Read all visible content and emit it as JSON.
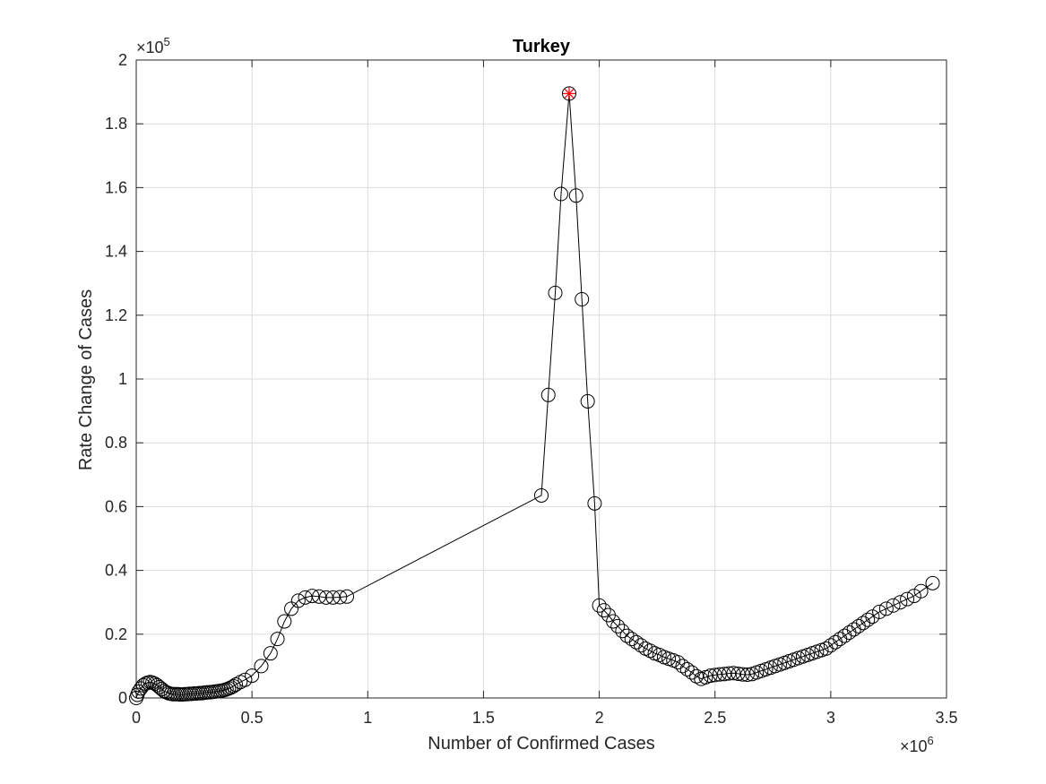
{
  "chart_data": {
    "type": "scatter",
    "title": "Turkey",
    "xlabel": "Number of Confirmed Cases",
    "ylabel": "Rate Change of Cases",
    "x_multiplier": {
      "base": "×10",
      "exponent": "6"
    },
    "y_multiplier": {
      "base": "×10",
      "exponent": "5"
    },
    "xlim": [
      0,
      3.5
    ],
    "ylim": [
      0,
      2
    ],
    "x_ticks": [
      "0",
      "0.5",
      "1",
      "1.5",
      "2",
      "2.5",
      "3",
      "3.5"
    ],
    "y_ticks": [
      "0",
      "0.2",
      "0.4",
      "0.6",
      "0.8",
      "1",
      "1.2",
      "1.4",
      "1.6",
      "1.8",
      "2"
    ],
    "grid": true,
    "series": [
      {
        "marker": "circle-open",
        "line": "solid",
        "color": "#000000",
        "x": [
          0.0,
          0.005,
          0.01,
          0.02,
          0.03,
          0.04,
          0.05,
          0.06,
          0.07,
          0.08,
          0.09,
          0.1,
          0.11,
          0.12,
          0.13,
          0.14,
          0.15,
          0.16,
          0.17,
          0.18,
          0.19,
          0.2,
          0.21,
          0.22,
          0.23,
          0.24,
          0.25,
          0.26,
          0.27,
          0.28,
          0.29,
          0.3,
          0.31,
          0.32,
          0.33,
          0.34,
          0.35,
          0.36,
          0.37,
          0.38,
          0.39,
          0.4,
          0.41,
          0.42,
          0.43,
          0.45,
          0.47,
          0.5,
          0.54,
          0.58,
          0.61,
          0.64,
          0.67,
          0.7,
          0.73,
          0.76,
          0.79,
          0.82,
          0.85,
          0.88,
          0.91,
          1.75,
          1.78,
          1.81,
          1.835,
          1.87,
          1.9,
          1.925,
          1.95,
          1.98,
          2.0,
          2.02,
          2.04,
          2.06,
          2.08,
          2.1,
          2.12,
          2.14,
          2.16,
          2.18,
          2.2,
          2.22,
          2.24,
          2.26,
          2.28,
          2.3,
          2.32,
          2.34,
          2.36,
          2.38,
          2.4,
          2.42,
          2.44,
          2.46,
          2.48,
          2.5,
          2.52,
          2.54,
          2.56,
          2.58,
          2.6,
          2.62,
          2.64,
          2.66,
          2.68,
          2.7,
          2.72,
          2.74,
          2.76,
          2.78,
          2.8,
          2.82,
          2.84,
          2.86,
          2.88,
          2.9,
          2.92,
          2.94,
          2.96,
          2.98,
          3.0,
          3.02,
          3.04,
          3.06,
          3.08,
          3.1,
          3.12,
          3.14,
          3.16,
          3.18,
          3.21,
          3.24,
          3.27,
          3.3,
          3.33,
          3.36,
          3.39,
          3.44
        ],
        "y": [
          0.0,
          0.01,
          0.02,
          0.03,
          0.04,
          0.045,
          0.048,
          0.05,
          0.048,
          0.045,
          0.04,
          0.034,
          0.028,
          0.022,
          0.018,
          0.015,
          0.013,
          0.012,
          0.012,
          0.012,
          0.011,
          0.011,
          0.012,
          0.012,
          0.013,
          0.013,
          0.014,
          0.014,
          0.015,
          0.015,
          0.016,
          0.017,
          0.018,
          0.018,
          0.019,
          0.02,
          0.021,
          0.022,
          0.023,
          0.025,
          0.027,
          0.03,
          0.033,
          0.037,
          0.042,
          0.05,
          0.057,
          0.07,
          0.1,
          0.14,
          0.185,
          0.24,
          0.28,
          0.305,
          0.315,
          0.32,
          0.318,
          0.315,
          0.315,
          0.316,
          0.318,
          0.635,
          0.95,
          1.27,
          1.58,
          1.895,
          1.575,
          1.25,
          0.93,
          0.61,
          0.29,
          0.275,
          0.26,
          0.24,
          0.225,
          0.21,
          0.195,
          0.185,
          0.175,
          0.165,
          0.155,
          0.148,
          0.14,
          0.135,
          0.128,
          0.123,
          0.118,
          0.112,
          0.1,
          0.09,
          0.08,
          0.068,
          0.06,
          0.065,
          0.07,
          0.072,
          0.074,
          0.075,
          0.077,
          0.078,
          0.076,
          0.074,
          0.073,
          0.075,
          0.08,
          0.085,
          0.09,
          0.095,
          0.1,
          0.105,
          0.11,
          0.115,
          0.12,
          0.125,
          0.13,
          0.135,
          0.14,
          0.145,
          0.15,
          0.155,
          0.165,
          0.175,
          0.185,
          0.195,
          0.205,
          0.215,
          0.225,
          0.235,
          0.245,
          0.255,
          0.27,
          0.28,
          0.29,
          0.3,
          0.31,
          0.32,
          0.335,
          0.36
        ]
      }
    ],
    "highlight": {
      "x": 1.87,
      "y": 1.895,
      "marker": "star",
      "color": "#ff0000"
    }
  }
}
